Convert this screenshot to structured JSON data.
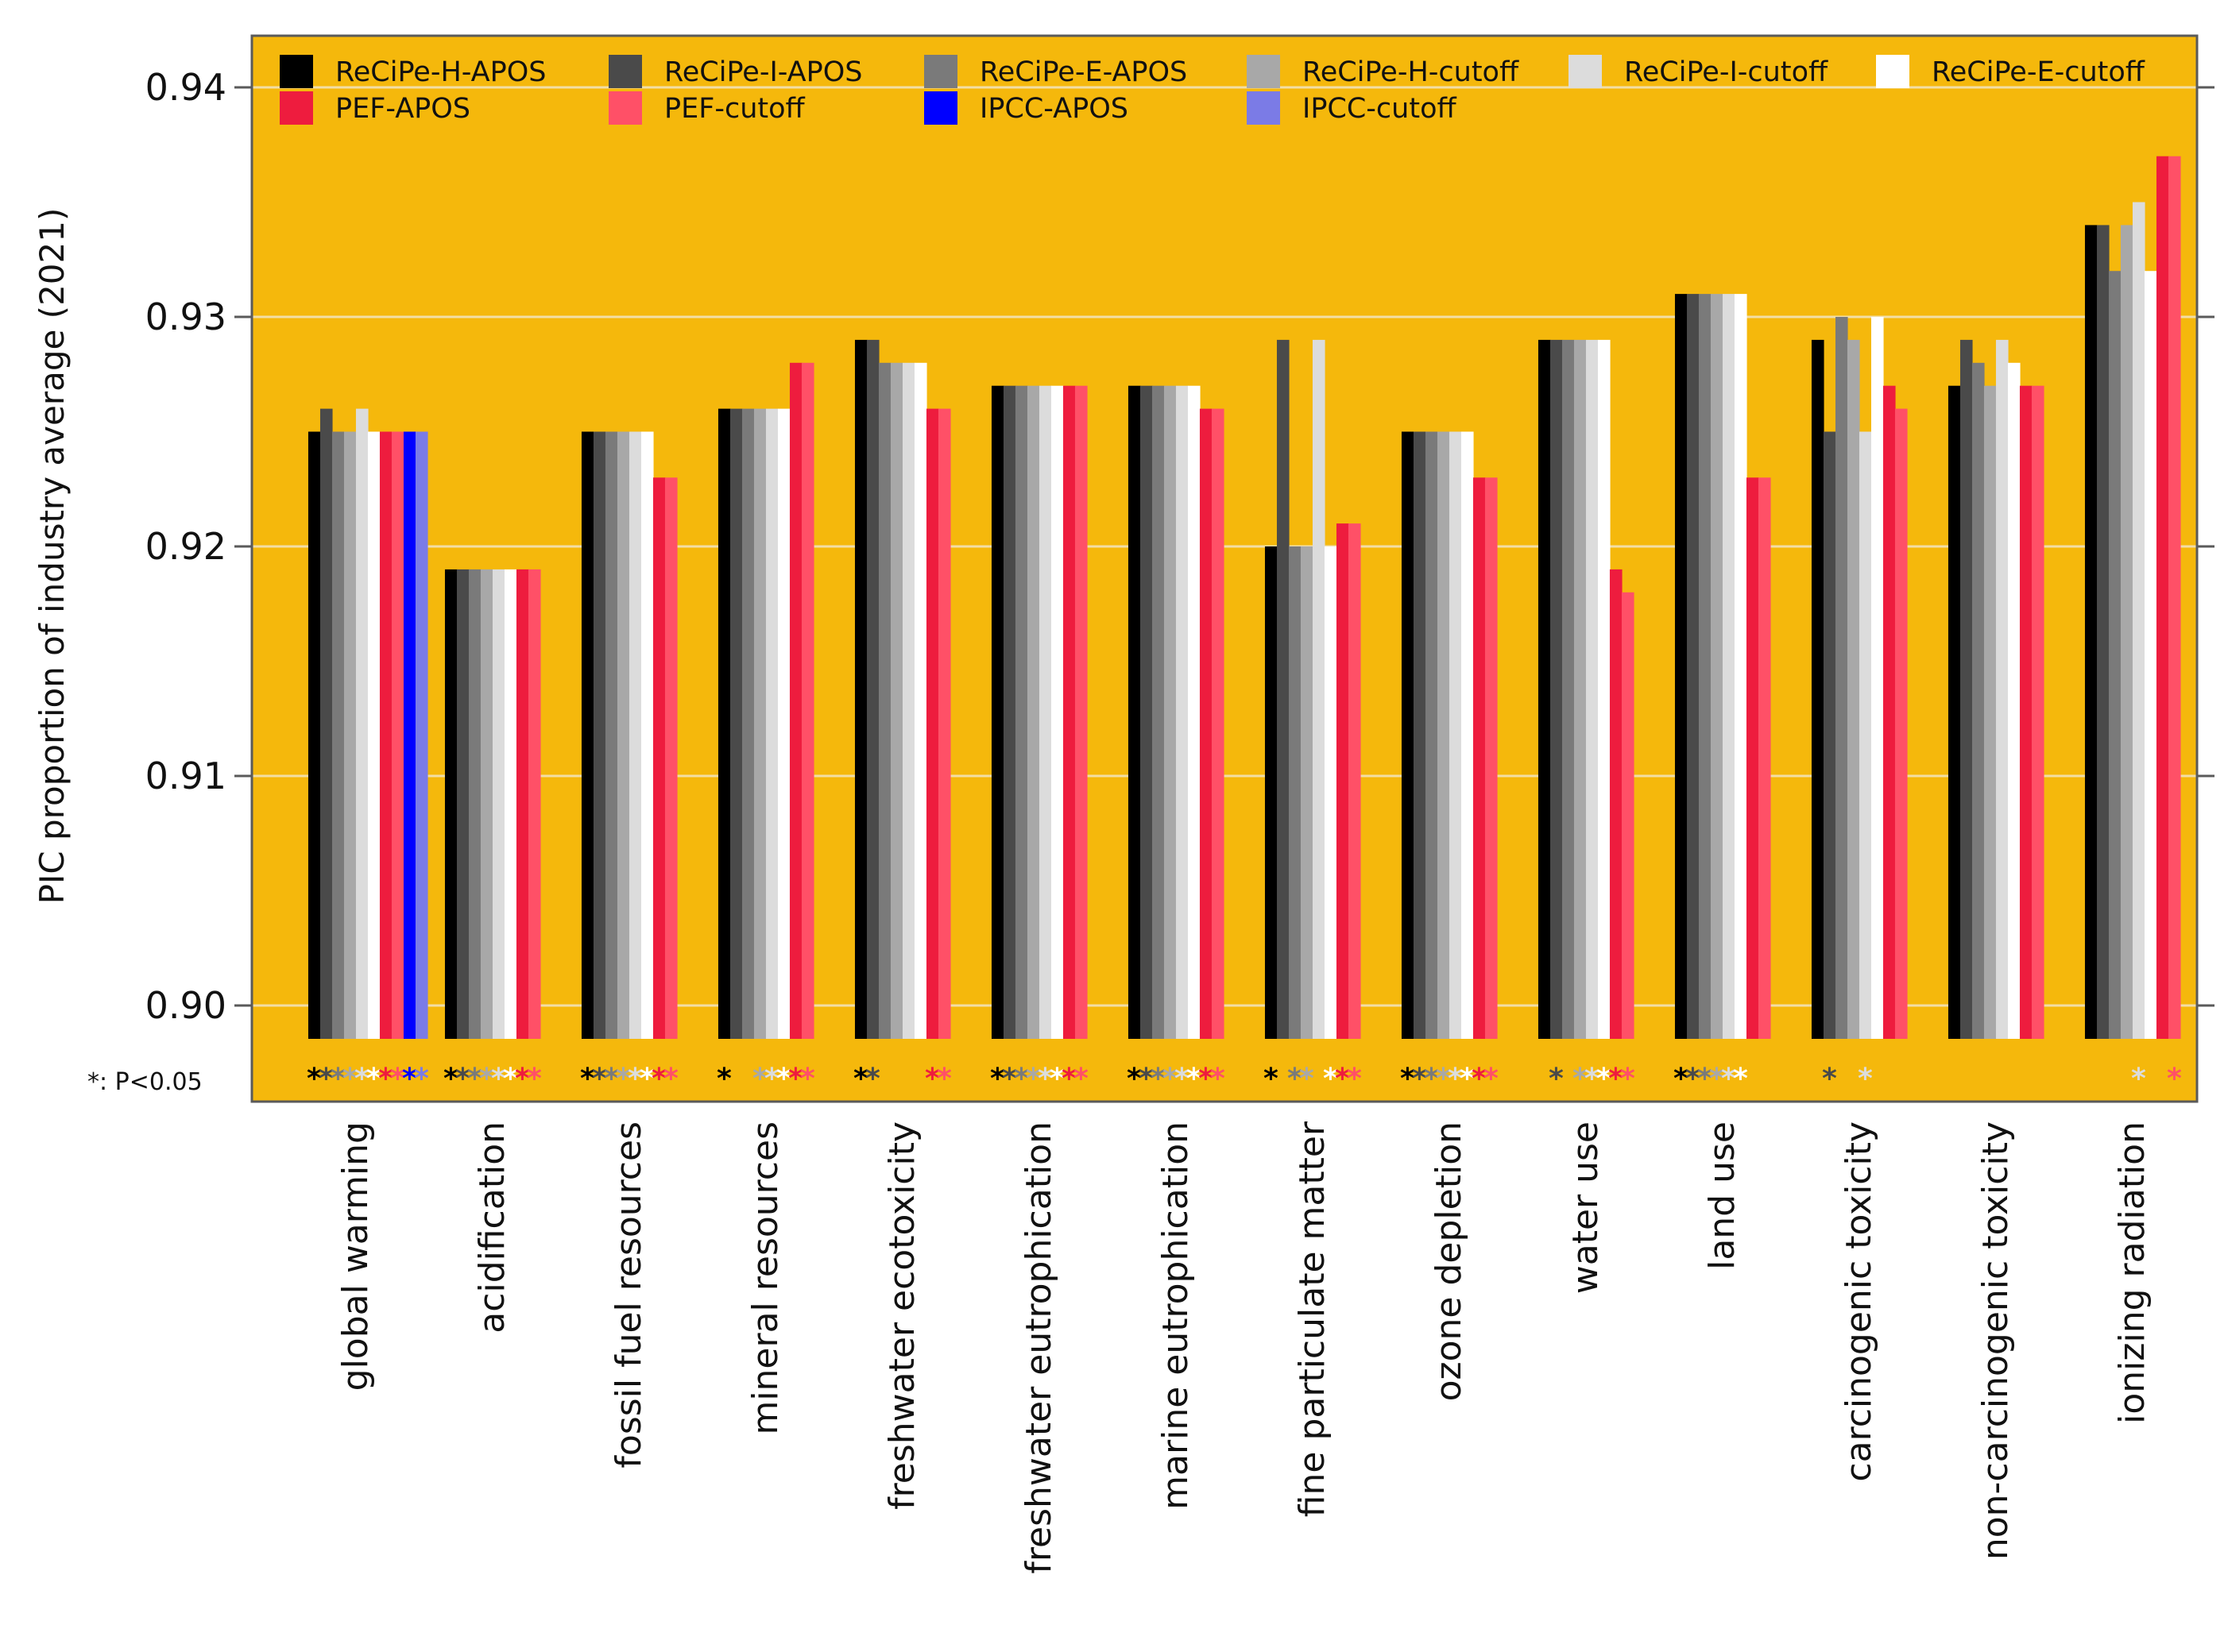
{
  "chart_data": {
    "type": "bar",
    "title": "",
    "xlabel": "",
    "ylabel": "PIC proportion of industry average (2021)",
    "ylim": [
      0.8955,
      0.9415
    ],
    "yticks": [
      0.9,
      0.91,
      0.92,
      0.93,
      0.94
    ],
    "ytick_labels": [
      "0.90",
      "0.91",
      "0.92",
      "0.93",
      "0.94"
    ],
    "grid": true,
    "legend_position": "top",
    "background_color": "#F5B80C",
    "significance_note": "*: P<0.05",
    "significance_symbol": "*",
    "categories": [
      "global warming",
      "acidification",
      "fossil fuel resources",
      "mineral resources",
      "freshwater ecotoxicity",
      "freshwater eutrophication",
      "marine eutrophication",
      "fine particulate matter",
      "ozone depletion",
      "water use",
      "land use",
      "carcinogenic toxicity",
      "non-carcinogenic toxicity",
      "ionizing radiation"
    ],
    "series": [
      {
        "name": "ReCiPe-H-APOS",
        "color": "#000000",
        "values": [
          0.925,
          0.919,
          0.925,
          0.926,
          0.929,
          0.927,
          0.927,
          0.92,
          0.925,
          0.929,
          0.931,
          0.929,
          0.927,
          0.934
        ],
        "significant": [
          true,
          true,
          true,
          true,
          true,
          true,
          true,
          true,
          true,
          false,
          true,
          false,
          false,
          false
        ]
      },
      {
        "name": "ReCiPe-I-APOS",
        "color": "#4A4A4A",
        "values": [
          0.926,
          0.919,
          0.925,
          0.926,
          0.929,
          0.927,
          0.927,
          0.929,
          0.925,
          0.929,
          0.931,
          0.925,
          0.929,
          0.934
        ],
        "significant": [
          true,
          true,
          true,
          false,
          true,
          true,
          true,
          false,
          true,
          true,
          true,
          true,
          false,
          false
        ]
      },
      {
        "name": "ReCiPe-E-APOS",
        "color": "#7A7A7A",
        "values": [
          0.925,
          0.919,
          0.925,
          0.926,
          0.928,
          0.927,
          0.927,
          0.92,
          0.925,
          0.929,
          0.931,
          0.93,
          0.928,
          0.932
        ],
        "significant": [
          true,
          true,
          true,
          false,
          false,
          true,
          true,
          true,
          true,
          false,
          true,
          false,
          false,
          false
        ]
      },
      {
        "name": "ReCiPe-H-cutoff",
        "color": "#A8A8A8",
        "values": [
          0.925,
          0.919,
          0.925,
          0.926,
          0.928,
          0.927,
          0.927,
          0.92,
          0.925,
          0.929,
          0.931,
          0.929,
          0.927,
          0.934
        ],
        "significant": [
          true,
          true,
          true,
          true,
          false,
          true,
          true,
          true,
          true,
          true,
          true,
          false,
          false,
          false
        ]
      },
      {
        "name": "ReCiPe-I-cutoff",
        "color": "#DCDCDC",
        "values": [
          0.926,
          0.919,
          0.925,
          0.926,
          0.928,
          0.927,
          0.927,
          0.929,
          0.925,
          0.929,
          0.931,
          0.925,
          0.929,
          0.935
        ],
        "significant": [
          true,
          true,
          true,
          true,
          false,
          true,
          true,
          false,
          true,
          true,
          true,
          true,
          false,
          true
        ]
      },
      {
        "name": "ReCiPe-E-cutoff",
        "color": "#FFFFFF",
        "values": [
          0.925,
          0.919,
          0.925,
          0.926,
          0.928,
          0.927,
          0.927,
          0.92,
          0.925,
          0.929,
          0.931,
          0.93,
          0.928,
          0.932
        ],
        "significant": [
          true,
          true,
          true,
          true,
          false,
          true,
          true,
          true,
          true,
          true,
          true,
          false,
          false,
          false
        ]
      },
      {
        "name": "PEF-APOS",
        "color": "#EE1C3E",
        "values": [
          0.925,
          0.919,
          0.923,
          0.928,
          0.926,
          0.927,
          0.926,
          0.921,
          0.923,
          0.919,
          0.923,
          0.927,
          0.927,
          0.937
        ],
        "significant": [
          true,
          true,
          true,
          true,
          true,
          true,
          true,
          true,
          true,
          true,
          false,
          false,
          false,
          false
        ]
      },
      {
        "name": "PEF-cutoff",
        "color": "#FF5067",
        "values": [
          0.925,
          0.919,
          0.923,
          0.928,
          0.926,
          0.927,
          0.926,
          0.921,
          0.923,
          0.918,
          0.923,
          0.926,
          0.927,
          0.937
        ],
        "significant": [
          true,
          true,
          true,
          true,
          true,
          true,
          true,
          true,
          true,
          true,
          false,
          false,
          false,
          true
        ]
      },
      {
        "name": "IPCC-APOS",
        "color": "#0000FF",
        "values": [
          0.925,
          null,
          null,
          null,
          null,
          null,
          null,
          null,
          null,
          null,
          null,
          null,
          null,
          null
        ],
        "significant": [
          true,
          false,
          false,
          false,
          false,
          false,
          false,
          false,
          false,
          false,
          false,
          false,
          false,
          false
        ]
      },
      {
        "name": "IPCC-cutoff",
        "color": "#7B7BE6",
        "values": [
          0.925,
          null,
          null,
          null,
          null,
          null,
          null,
          null,
          null,
          null,
          null,
          null,
          null,
          null
        ],
        "significant": [
          true,
          false,
          false,
          false,
          false,
          false,
          false,
          false,
          false,
          false,
          false,
          false,
          false,
          false
        ]
      }
    ]
  }
}
